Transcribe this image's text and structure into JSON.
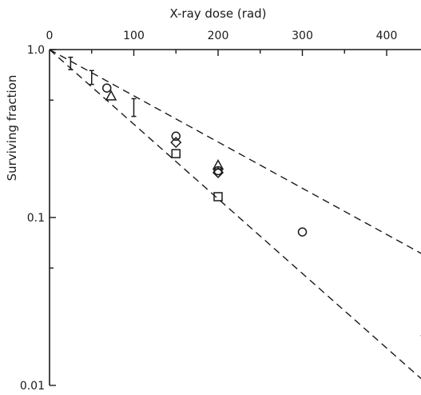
{
  "chart_data": {
    "type": "scatter",
    "title": "",
    "xlabel": "X-ray dose (rad)",
    "ylabel": "Surviving fraction",
    "x_axis_position": "top",
    "y_scale": "log",
    "xlim": [
      0,
      450
    ],
    "ylim": [
      0.01,
      1.0
    ],
    "x_ticks": [
      0,
      100,
      200,
      300,
      400
    ],
    "x_tick_labels": [
      "0",
      "100",
      "200",
      "300",
      "400"
    ],
    "y_tick_values": [
      1.0,
      0.1,
      0.01
    ],
    "y_tick_labels": [
      "1.0",
      "0.1",
      "0.01"
    ],
    "grid": false,
    "legend": "none",
    "series": [
      {
        "marker": "circle",
        "points": [
          {
            "x": 68,
            "y": 0.59
          },
          {
            "x": 150,
            "y": 0.305
          },
          {
            "x": 200,
            "y": 0.19
          },
          {
            "x": 300,
            "y": 0.082
          }
        ]
      },
      {
        "marker": "triangle",
        "points": [
          {
            "x": 73,
            "y": 0.53
          },
          {
            "x": 200,
            "y": 0.205
          },
          {
            "x": 447,
            "y": 0.021
          }
        ]
      },
      {
        "marker": "diamond",
        "points": [
          {
            "x": 150,
            "y": 0.28
          },
          {
            "x": 200,
            "y": 0.185
          }
        ]
      },
      {
        "marker": "square",
        "points": [
          {
            "x": 150,
            "y": 0.24
          },
          {
            "x": 200,
            "y": 0.133
          }
        ]
      },
      {
        "marker": "errorbar",
        "points": [
          {
            "x": 25,
            "y": 0.82,
            "low": 0.76,
            "high": 0.9
          },
          {
            "x": 50,
            "y": 0.68,
            "low": 0.62,
            "high": 0.75
          },
          {
            "x": 100,
            "y": 0.45,
            "low": 0.4,
            "high": 0.51
          }
        ]
      }
    ],
    "fit_lines": [
      {
        "style": "dashed",
        "points": [
          {
            "x": 0,
            "y": 1.0
          },
          {
            "x": 452,
            "y": 0.057
          }
        ]
      },
      {
        "style": "dashed",
        "points": [
          {
            "x": 0,
            "y": 1.0
          },
          {
            "x": 452,
            "y": 0.0098
          }
        ]
      }
    ],
    "colors": {
      "ink": "#1a1a1a",
      "background": "#ffffff"
    }
  }
}
